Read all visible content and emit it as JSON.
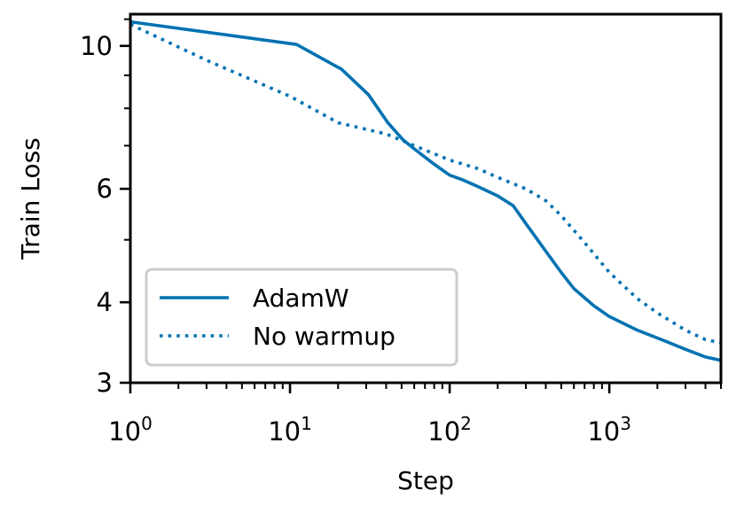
{
  "chart_data": {
    "type": "line",
    "title": "",
    "xlabel": "Step",
    "ylabel": "Train Loss",
    "xscale": "log",
    "yscale": "log",
    "xlim": [
      1,
      5000
    ],
    "ylim": [
      3,
      11.2
    ],
    "x_ticks": [
      {
        "value": 1,
        "base": "10",
        "exp": "0"
      },
      {
        "value": 10,
        "base": "10",
        "exp": "1"
      },
      {
        "value": 100,
        "base": "10",
        "exp": "2"
      },
      {
        "value": 1000,
        "base": "10",
        "exp": "3"
      }
    ],
    "y_ticks": [
      {
        "value": 3,
        "label": "3"
      },
      {
        "value": 4,
        "label": "4"
      },
      {
        "value": 6,
        "label": "6"
      },
      {
        "value": 10,
        "label": "10"
      }
    ],
    "legend_position": "lower-left",
    "color": "#0072B2",
    "series": [
      {
        "name": "AdamW",
        "style": "solid",
        "points": [
          [
            1,
            10.9
          ],
          [
            11,
            10.05
          ],
          [
            21,
            9.2
          ],
          [
            31,
            8.4
          ],
          [
            41,
            7.6
          ],
          [
            51,
            7.15
          ],
          [
            61,
            6.9
          ],
          [
            80,
            6.55
          ],
          [
            100,
            6.3
          ],
          [
            120,
            6.2
          ],
          [
            150,
            6.05
          ],
          [
            200,
            5.85
          ],
          [
            250,
            5.65
          ],
          [
            300,
            5.3
          ],
          [
            400,
            4.8
          ],
          [
            500,
            4.45
          ],
          [
            600,
            4.2
          ],
          [
            800,
            3.95
          ],
          [
            1000,
            3.8
          ],
          [
            1500,
            3.62
          ],
          [
            2000,
            3.52
          ],
          [
            3000,
            3.38
          ],
          [
            4000,
            3.29
          ],
          [
            5000,
            3.25
          ]
        ]
      },
      {
        "name": "No warmup",
        "style": "dotted",
        "points": [
          [
            1,
            10.8
          ],
          [
            3,
            9.5
          ],
          [
            10,
            8.35
          ],
          [
            20,
            7.6
          ],
          [
            40,
            7.3
          ],
          [
            60,
            7.0
          ],
          [
            80,
            6.8
          ],
          [
            100,
            6.65
          ],
          [
            150,
            6.45
          ],
          [
            200,
            6.25
          ],
          [
            300,
            6.0
          ],
          [
            400,
            5.75
          ],
          [
            500,
            5.45
          ],
          [
            700,
            4.95
          ],
          [
            1000,
            4.45
          ],
          [
            1500,
            4.05
          ],
          [
            2000,
            3.85
          ],
          [
            3000,
            3.62
          ],
          [
            4000,
            3.5
          ],
          [
            5000,
            3.46
          ]
        ]
      }
    ]
  }
}
